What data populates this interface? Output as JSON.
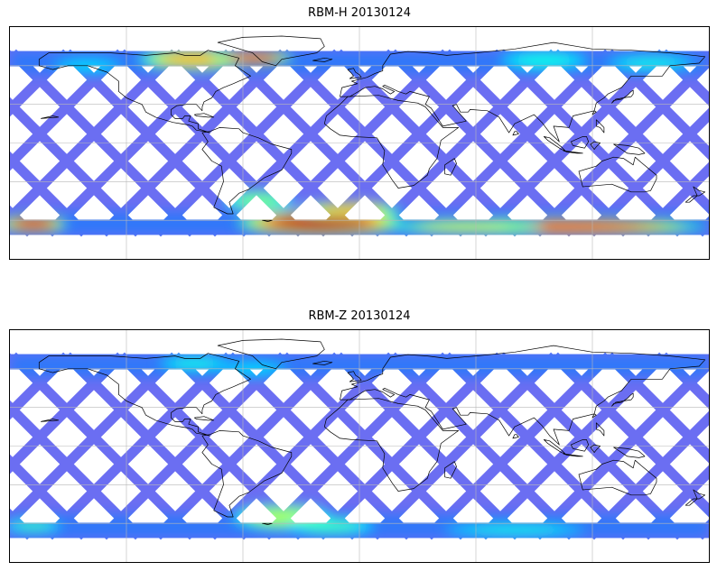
{
  "panels": [
    {
      "title": "RBM-H 20130124",
      "hot_regions": [
        {
          "lon": -168,
          "lat": -63,
          "rx": 16,
          "ry": 6,
          "level": 0.9
        },
        {
          "lon": 105,
          "lat": -65,
          "rx": 70,
          "ry": 6,
          "level": 0.85
        },
        {
          "lon": 55,
          "lat": -65,
          "rx": 40,
          "ry": 5,
          "level": 0.6
        },
        {
          "lon": -20,
          "lat": -62,
          "rx": 40,
          "ry": 9,
          "level": 0.95
        },
        {
          "lon": -5,
          "lat": -52,
          "rx": 25,
          "ry": 6,
          "level": 0.7
        },
        {
          "lon": -52,
          "lat": -45,
          "rx": 18,
          "ry": 8,
          "level": 0.5
        },
        {
          "lon": 95,
          "lat": 64,
          "rx": 25,
          "ry": 8,
          "level": 0.4
        },
        {
          "lon": -85,
          "lat": 65,
          "rx": 28,
          "ry": 8,
          "level": 0.7
        },
        {
          "lon": -55,
          "lat": 66,
          "rx": 20,
          "ry": 5,
          "level": 0.85
        },
        {
          "lon": -140,
          "lat": 60,
          "rx": 20,
          "ry": 6,
          "level": 0.35
        },
        {
          "lon": 150,
          "lat": 62,
          "rx": 25,
          "ry": 6,
          "level": 0.4
        }
      ]
    },
    {
      "title": "RBM-Z 20130124",
      "hot_regions": [
        {
          "lon": -168,
          "lat": -62,
          "rx": 16,
          "ry": 5,
          "level": 0.45
        },
        {
          "lon": 80,
          "lat": -65,
          "rx": 40,
          "ry": 5,
          "level": 0.4
        },
        {
          "lon": -40,
          "lat": -55,
          "rx": 25,
          "ry": 10,
          "level": 0.55
        },
        {
          "lon": -15,
          "lat": -62,
          "rx": 25,
          "ry": 7,
          "level": 0.45
        },
        {
          "lon": -85,
          "lat": 64,
          "rx": 20,
          "ry": 6,
          "level": 0.4
        },
        {
          "lon": -55,
          "lat": 60,
          "rx": 20,
          "ry": 6,
          "level": 0.35
        }
      ]
    }
  ],
  "map_extent": {
    "lon": [
      -180,
      180
    ],
    "lat": [
      -90,
      90
    ]
  },
  "data_lat_range": [
    -70,
    70
  ],
  "gridlines": {
    "lon": [
      -120,
      -60,
      0,
      60,
      120
    ],
    "lat": [
      -60,
      -30,
      0,
      30,
      60
    ]
  },
  "colormap": "jet",
  "track_base_color": "#6b6ef2",
  "coastline_color": "#000000",
  "continents": [
    [
      [
        -18,
        15
      ],
      [
        -17,
        21
      ],
      [
        -10,
        30
      ],
      [
        -6,
        36
      ],
      [
        10,
        37
      ],
      [
        20,
        33
      ],
      [
        30,
        31
      ],
      [
        34,
        28
      ],
      [
        43,
        12
      ],
      [
        51,
        12
      ],
      [
        42,
        2
      ],
      [
        40,
        -12
      ],
      [
        36,
        -20
      ],
      [
        35,
        -25
      ],
      [
        28,
        -33
      ],
      [
        20,
        -35
      ],
      [
        17,
        -29
      ],
      [
        12,
        -17
      ],
      [
        13,
        -6
      ],
      [
        9,
        4
      ],
      [
        -4,
        5
      ],
      [
        -10,
        6
      ],
      [
        -15,
        11
      ]
    ],
    [
      [
        49,
        -12
      ],
      [
        50,
        -16
      ],
      [
        47,
        -25
      ],
      [
        44,
        -24
      ],
      [
        44,
        -17
      ]
    ],
    [
      [
        -10,
        36
      ],
      [
        -9,
        43
      ],
      [
        -1,
        46
      ],
      [
        -4,
        48
      ],
      [
        4,
        51
      ],
      [
        8,
        54
      ],
      [
        12,
        56
      ],
      [
        12,
        60
      ],
      [
        16,
        69
      ],
      [
        25,
        71
      ],
      [
        35,
        70
      ],
      [
        45,
        68
      ],
      [
        60,
        70
      ],
      [
        80,
        73
      ],
      [
        100,
        78
      ],
      [
        120,
        73
      ],
      [
        140,
        72
      ],
      [
        160,
        70
      ],
      [
        178,
        67
      ],
      [
        175,
        62
      ],
      [
        160,
        60
      ],
      [
        156,
        52
      ],
      [
        140,
        52
      ],
      [
        135,
        43
      ],
      [
        128,
        38
      ],
      [
        126,
        35
      ],
      [
        122,
        31
      ],
      [
        121,
        25
      ],
      [
        110,
        21
      ],
      [
        108,
        12
      ],
      [
        100,
        13
      ],
      [
        103,
        1
      ],
      [
        98,
        8
      ],
      [
        94,
        16
      ],
      [
        90,
        22
      ],
      [
        80,
        15
      ],
      [
        77,
        8
      ],
      [
        72,
        20
      ],
      [
        66,
        25
      ],
      [
        57,
        26
      ],
      [
        56,
        24
      ],
      [
        52,
        24
      ],
      [
        50,
        30
      ],
      [
        48,
        29
      ],
      [
        55,
        17
      ],
      [
        43,
        13
      ],
      [
        37,
        27
      ],
      [
        34,
        30
      ],
      [
        36,
        36
      ],
      [
        26,
        40
      ],
      [
        24,
        38
      ],
      [
        20,
        40
      ],
      [
        13,
        45
      ],
      [
        12,
        44
      ],
      [
        18,
        40
      ],
      [
        16,
        38
      ],
      [
        12,
        42
      ],
      [
        8,
        44
      ],
      [
        3,
        43
      ],
      [
        -5,
        36
      ]
    ],
    [
      [
        113,
        -22
      ],
      [
        115,
        -34
      ],
      [
        130,
        -32
      ],
      [
        135,
        -35
      ],
      [
        140,
        -38
      ],
      [
        147,
        -38
      ],
      [
        150,
        -37
      ],
      [
        153,
        -28
      ],
      [
        153,
        -25
      ],
      [
        145,
        -15
      ],
      [
        142,
        -11
      ],
      [
        141,
        -17
      ],
      [
        136,
        -12
      ],
      [
        131,
        -11
      ],
      [
        125,
        -14
      ],
      [
        122,
        -18
      ]
    ],
    [
      [
        -81,
        8
      ],
      [
        -78,
        1
      ],
      [
        -81,
        -5
      ],
      [
        -76,
        -14
      ],
      [
        -71,
        -18
      ],
      [
        -70,
        -30
      ],
      [
        -73,
        -42
      ],
      [
        -75,
        -50
      ],
      [
        -68,
        -55
      ],
      [
        -65,
        -55
      ],
      [
        -67,
        -46
      ],
      [
        -62,
        -39
      ],
      [
        -57,
        -36
      ],
      [
        -49,
        -27
      ],
      [
        -40,
        -21
      ],
      [
        -35,
        -8
      ],
      [
        -35,
        -5
      ],
      [
        -45,
        -1
      ],
      [
        -52,
        4
      ],
      [
        -60,
        8
      ],
      [
        -62,
        11
      ],
      [
        -72,
        12
      ],
      [
        -77,
        9
      ]
    ],
    [
      [
        -77,
        8
      ],
      [
        -80,
        9
      ],
      [
        -84,
        10
      ],
      [
        -86,
        13
      ],
      [
        -88,
        14
      ],
      [
        -92,
        15
      ],
      [
        -96,
        16
      ],
      [
        -105,
        20
      ],
      [
        -110,
        24
      ],
      [
        -112,
        30
      ],
      [
        -117,
        33
      ],
      [
        -120,
        35
      ],
      [
        -124,
        40
      ],
      [
        -124,
        48
      ],
      [
        -130,
        55
      ],
      [
        -140,
        60
      ],
      [
        -150,
        60
      ],
      [
        -158,
        57
      ],
      [
        -165,
        60
      ],
      [
        -165,
        65
      ],
      [
        -160,
        70
      ],
      [
        -140,
        70
      ],
      [
        -128,
        70
      ],
      [
        -110,
        68
      ],
      [
        -95,
        70
      ],
      [
        -90,
        68
      ],
      [
        -82,
        68
      ],
      [
        -78,
        72
      ],
      [
        -62,
        66
      ],
      [
        -64,
        60
      ],
      [
        -56,
        52
      ],
      [
        -65,
        46
      ],
      [
        -70,
        43
      ],
      [
        -74,
        40
      ],
      [
        -76,
        35
      ],
      [
        -80,
        32
      ],
      [
        -81,
        28
      ],
      [
        -81,
        25
      ],
      [
        -84,
        30
      ],
      [
        -89,
        30
      ],
      [
        -94,
        29
      ],
      [
        -97,
        26
      ],
      [
        -97,
        22
      ],
      [
        -95,
        19
      ],
      [
        -91,
        19
      ],
      [
        -90,
        21
      ],
      [
        -87,
        21
      ],
      [
        -88,
        17
      ],
      [
        -83,
        15
      ],
      [
        -83,
        11
      ]
    ],
    [
      [
        -73,
        78
      ],
      [
        -60,
        82
      ],
      [
        -40,
        83
      ],
      [
        -20,
        81
      ],
      [
        -18,
        75
      ],
      [
        -22,
        70
      ],
      [
        -40,
        65
      ],
      [
        -43,
        60
      ],
      [
        -50,
        63
      ],
      [
        -55,
        70
      ]
    ],
    [
      [
        -5,
        50
      ],
      [
        1,
        51
      ],
      [
        0,
        53
      ],
      [
        -2,
        55
      ],
      [
        -3,
        58
      ],
      [
        -6,
        57
      ],
      [
        -4,
        54
      ],
      [
        -3,
        52
      ]
    ],
    [
      [
        130,
        31
      ],
      [
        132,
        34
      ],
      [
        136,
        35
      ],
      [
        140,
        36
      ],
      [
        141,
        38
      ],
      [
        141,
        41
      ],
      [
        140,
        40
      ],
      [
        138,
        37
      ],
      [
        135,
        34
      ],
      [
        131,
        33
      ]
    ],
    [
      [
        95,
        5
      ],
      [
        98,
        4
      ],
      [
        104,
        -3
      ],
      [
        106,
        -6
      ],
      [
        104,
        -5
      ],
      [
        100,
        -1
      ],
      [
        97,
        2
      ]
    ],
    [
      [
        105,
        -6
      ],
      [
        110,
        -7
      ],
      [
        115,
        -8
      ],
      [
        112,
        -8
      ],
      [
        107,
        -7
      ]
    ],
    [
      [
        109,
        1
      ],
      [
        110,
        -2
      ],
      [
        116,
        -4
      ],
      [
        118,
        1
      ],
      [
        117,
        5
      ],
      [
        115,
        5
      ],
      [
        112,
        3
      ]
    ],
    [
      [
        119,
        -1
      ],
      [
        121,
        1
      ],
      [
        124,
        0
      ],
      [
        122,
        -3
      ],
      [
        121,
        -5
      ],
      [
        120,
        -3
      ]
    ],
    [
      [
        131,
        -1
      ],
      [
        138,
        -2
      ],
      [
        144,
        -4
      ],
      [
        147,
        -8
      ],
      [
        144,
        -9
      ],
      [
        138,
        -8
      ],
      [
        134,
        -4
      ]
    ],
    [
      [
        172,
        -34
      ],
      [
        175,
        -37
      ],
      [
        178,
        -38
      ],
      [
        175,
        -41
      ],
      [
        172,
        -41
      ],
      [
        168,
        -46
      ],
      [
        170,
        -46
      ],
      [
        174,
        -41
      ]
    ],
    [
      [
        -85,
        22
      ],
      [
        -80,
        23
      ],
      [
        -75,
        20
      ],
      [
        -78,
        20
      ],
      [
        -84,
        21
      ]
    ],
    [
      [
        -164,
        19
      ],
      [
        -158,
        21
      ],
      [
        -155,
        20
      ]
    ],
    [
      [
        -50,
        -60
      ],
      [
        -47,
        -61
      ],
      [
        -45,
        -60
      ]
    ],
    [
      [
        -24,
        64
      ],
      [
        -18,
        66
      ],
      [
        -14,
        65
      ],
      [
        -18,
        63
      ]
    ],
    [
      [
        79,
        6
      ],
      [
        82,
        7
      ],
      [
        81,
        9
      ],
      [
        80,
        9
      ]
    ],
    [
      [
        120,
        22
      ],
      [
        121,
        25
      ],
      [
        122,
        24
      ]
    ],
    [
      [
        122,
        13
      ],
      [
        124,
        12
      ],
      [
        126,
        8
      ],
      [
        126,
        12
      ],
      [
        122,
        18
      ]
    ]
  ]
}
